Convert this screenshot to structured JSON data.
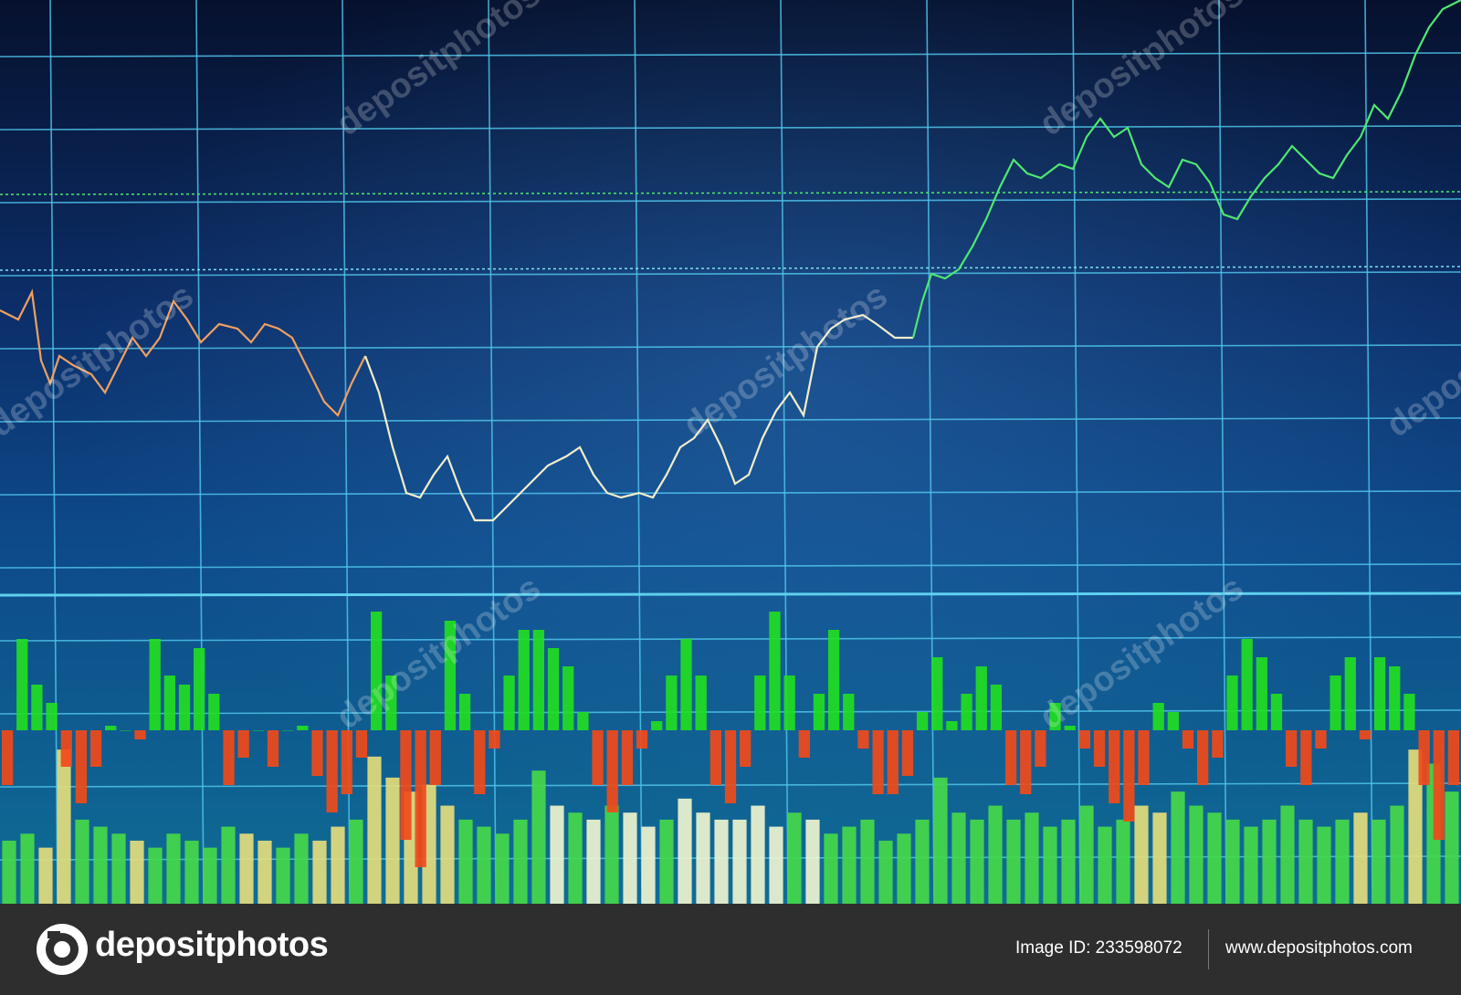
{
  "chart_data": [
    {
      "type": "line",
      "xlim": [
        0,
        320
      ],
      "ylim": [
        0,
        700
      ],
      "series": [
        {
          "color": "#f0a060",
          "x": [
            0,
            4,
            7,
            9,
            11,
            13,
            16,
            20,
            23,
            26,
            29,
            32,
            35,
            38,
            41,
            44,
            48,
            52,
            55,
            58,
            61,
            64,
            68,
            71,
            74,
            77,
            80
          ],
          "values": [
            360,
            350,
            380,
            305,
            280,
            310,
            300,
            290,
            270,
            300,
            330,
            310,
            330,
            370,
            350,
            325,
            345,
            340,
            325,
            345,
            340,
            330,
            290,
            260,
            245,
            280,
            310
          ]
        },
        {
          "color": "#f2eecb",
          "x": [
            80,
            83,
            86,
            89,
            92,
            95,
            98,
            101,
            104,
            108,
            112,
            116,
            120,
            124,
            127,
            130,
            133,
            136,
            140,
            143,
            146,
            149,
            152,
            155,
            158,
            161,
            164,
            167,
            170,
            173,
            176,
            179,
            182,
            185,
            189,
            192,
            196,
            200
          ],
          "values": [
            310,
            270,
            210,
            160,
            155,
            180,
            200,
            160,
            130,
            130,
            150,
            170,
            190,
            200,
            210,
            180,
            160,
            155,
            160,
            155,
            180,
            210,
            220,
            240,
            210,
            170,
            180,
            220,
            250,
            270,
            245,
            320,
            340,
            350,
            355,
            345,
            330,
            330
          ]
        },
        {
          "color": "#4fe870",
          "x": [
            200,
            202,
            204,
            207,
            210,
            213,
            216,
            219,
            222,
            225,
            228,
            232,
            235,
            238,
            241,
            244,
            247,
            250,
            253,
            256,
            259,
            262,
            265,
            268,
            271,
            274,
            277,
            280,
            283,
            286,
            289,
            292,
            295,
            298,
            301,
            304,
            307,
            310,
            313,
            316,
            320
          ],
          "values": [
            330,
            370,
            400,
            395,
            405,
            430,
            460,
            495,
            525,
            510,
            505,
            520,
            515,
            550,
            570,
            550,
            560,
            520,
            505,
            495,
            525,
            520,
            500,
            465,
            460,
            485,
            505,
            520,
            540,
            525,
            510,
            505,
            530,
            550,
            585,
            570,
            600,
            640,
            670,
            690,
            700
          ]
        }
      ]
    },
    {
      "type": "bar",
      "ylim": [
        0,
        645
      ],
      "values": [
        45,
        50,
        40,
        110,
        60,
        55,
        50,
        45,
        40,
        50,
        45,
        40,
        55,
        50,
        45,
        40,
        50,
        45,
        55,
        60,
        105,
        90,
        80,
        85,
        70,
        60,
        55,
        50,
        60,
        95,
        70,
        65,
        60,
        70,
        65,
        55,
        60,
        75,
        65,
        60,
        60,
        70,
        55,
        65,
        60,
        50,
        55,
        60,
        45,
        50,
        60,
        90,
        65,
        60,
        70,
        60,
        65,
        55,
        60,
        70,
        55,
        60,
        70,
        65,
        80,
        70,
        65,
        60,
        55,
        60,
        70,
        60,
        55,
        60,
        65,
        60,
        70,
        110,
        100,
        80
      ],
      "colors": [
        "#45d84a",
        "#45d84a",
        "#e3dc7c",
        "#e3dc7c",
        "#45d84a",
        "#45d84a",
        "#45d84a",
        "#e3dc7c",
        "#45d84a",
        "#45d84a",
        "#45d84a",
        "#45d84a",
        "#45d84a",
        "#e3dc7c",
        "#e3dc7c",
        "#45d84a",
        "#45d84a",
        "#e3dc7c",
        "#e3dc7c",
        "#45d84a",
        "#e3dc7c",
        "#e3dc7c",
        "#e3dc7c",
        "#e3dc7c",
        "#e3dc7c",
        "#45d84a",
        "#45d84a",
        "#45d84a",
        "#45d84a",
        "#45d84a",
        "#eef3cf",
        "#45d84a",
        "#eef3cf",
        "#45d84a",
        "#eef3cf",
        "#eef3cf",
        "#45d84a",
        "#eef3cf",
        "#eef3cf",
        "#eef3cf",
        "#eef3cf",
        "#eef3cf",
        "#eef3cf",
        "#45d84a",
        "#eef3cf",
        "#45d84a",
        "#45d84a",
        "#45d84a",
        "#45d84a",
        "#45d84a",
        "#45d84a",
        "#45d84a",
        "#45d84a",
        "#45d84a",
        "#45d84a",
        "#45d84a",
        "#45d84a",
        "#45d84a",
        "#45d84a",
        "#45d84a",
        "#45d84a",
        "#45d84a",
        "#e3dc7c",
        "#e3dc7c",
        "#45d84a",
        "#45d84a",
        "#45d84a",
        "#45d84a",
        "#45d84a",
        "#45d84a",
        "#45d84a",
        "#45d84a",
        "#45d84a",
        "#45d84a",
        "#e3dc7c",
        "#45d84a",
        "#45d84a",
        "#e3dc7c",
        "#45d84a",
        "#45d84a"
      ]
    },
    {
      "type": "bar",
      "ylim": [
        -190,
        800
      ],
      "up_color": "#22dd22",
      "down_color": "#f04a1a",
      "values": [
        -60,
        100,
        50,
        30,
        -40,
        -80,
        -40,
        5,
        0,
        -10,
        100,
        60,
        50,
        90,
        40,
        -60,
        -30,
        0,
        -40,
        0,
        5,
        -50,
        -90,
        -70,
        -30,
        130,
        60,
        -120,
        -150,
        -60,
        120,
        40,
        -70,
        -20,
        60,
        110,
        110,
        90,
        70,
        20,
        -60,
        -90,
        -60,
        -20,
        10,
        60,
        100,
        60,
        -60,
        -80,
        -40,
        60,
        130,
        60,
        -30,
        40,
        110,
        40,
        -20,
        -70,
        -70,
        -50,
        20,
        80,
        10,
        40,
        70,
        50,
        -60,
        -70,
        -40,
        30,
        5,
        -20,
        -40,
        -80,
        -100,
        -60,
        30,
        20,
        -20,
        -60,
        -30,
        60,
        100,
        80,
        40,
        -40,
        -60,
        -20,
        60,
        80,
        -10,
        80,
        70,
        40,
        -60,
        -120,
        -60
      ]
    }
  ],
  "watermark": "depositphotos",
  "footer": {
    "brand": "depositphotos",
    "image_id": "Image ID: 233598072",
    "site": "www.depositphotos.com"
  }
}
